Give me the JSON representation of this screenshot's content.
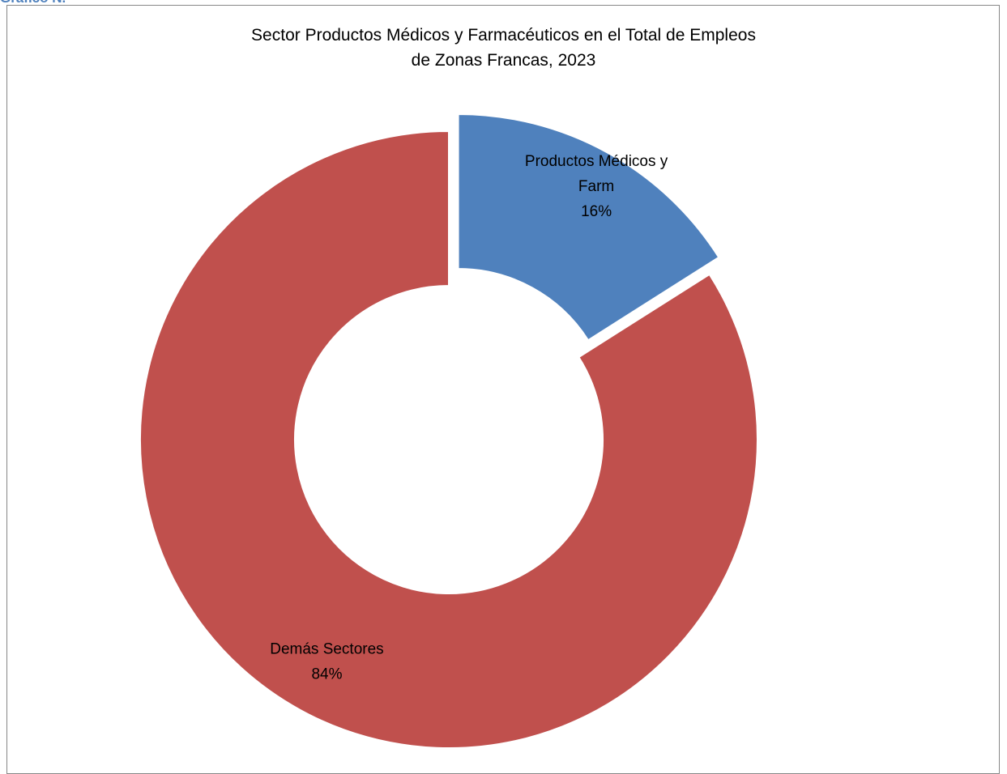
{
  "header": {
    "caption_fragment": "Gráfico N."
  },
  "chart_data": {
    "type": "pie",
    "style": "doughnut",
    "title_lines": [
      "Sector Productos Médicos y Farmacéuticos en el Total de Empleos",
      "de Zonas Francas, 2023"
    ],
    "start_angle_deg": 0,
    "direction": "clockwise",
    "slices": [
      {
        "label_lines": [
          "Productos Médicos y",
          "Farm"
        ],
        "value": 16,
        "percent_label": "16%",
        "color": "#4f81bd",
        "exploded": true
      },
      {
        "label_lines": [
          "Demás Sectores"
        ],
        "value": 84,
        "percent_label": "84%",
        "color": "#c0504d",
        "exploded": false
      }
    ],
    "legend": "none",
    "data_labels": "category and percentage"
  }
}
